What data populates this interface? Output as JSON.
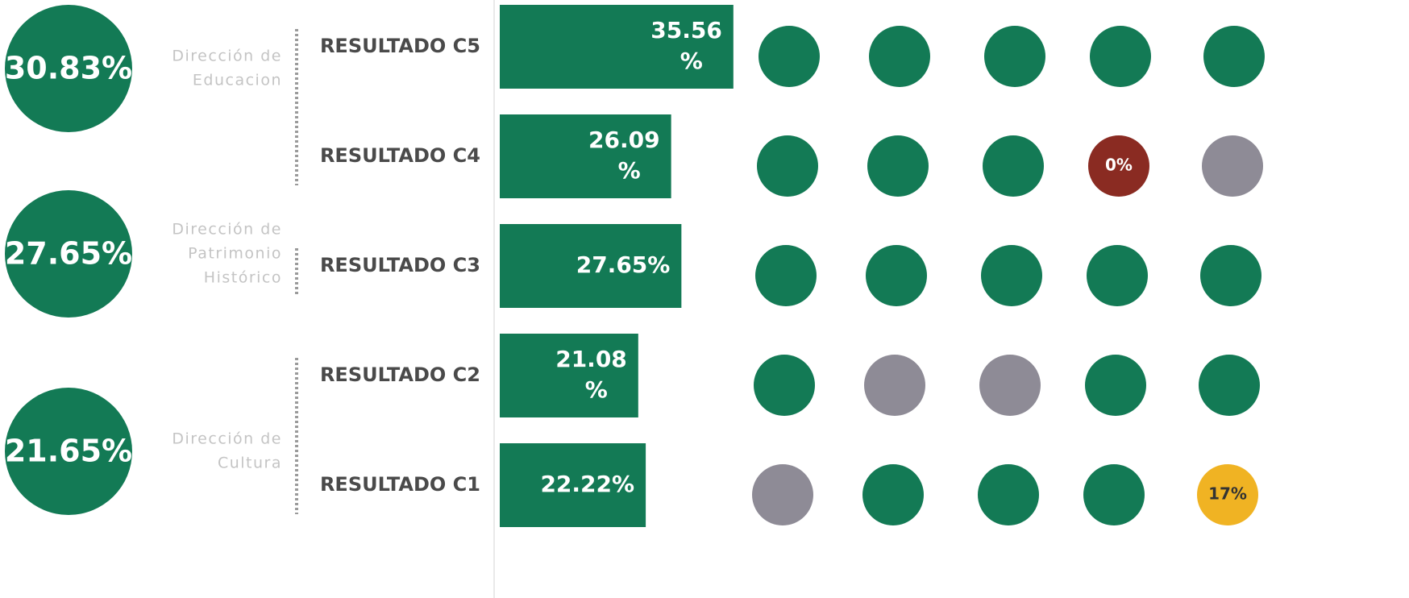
{
  "scale": {
    "xlim": [
      0,
      40
    ]
  },
  "groups": [
    {
      "total": "30.83%",
      "name": [
        "Dirección de",
        "Educacion"
      ],
      "color": "#137a55",
      "rows": [
        {
          "label": "RESULTADO C5",
          "value": 35.56,
          "value_label": [
            "35.56",
            "%"
          ],
          "dots": [
            {
              "color": "#137a55"
            },
            {
              "color": "#137a55"
            },
            {
              "color": "#137a55"
            },
            {
              "color": "#137a55"
            },
            {
              "color": "#137a55"
            }
          ]
        },
        {
          "label": "RESULTADO C4",
          "value": 26.09,
          "value_label": [
            "26.09",
            "%"
          ],
          "dots": [
            {
              "color": "#137a55"
            },
            {
              "color": "#137a55"
            },
            {
              "color": "#137a55"
            },
            {
              "color": "#8a2b22",
              "label": "0%"
            },
            {
              "color": "#8e8b96"
            }
          ]
        }
      ]
    },
    {
      "total": "27.65%",
      "name": [
        "Dirección de",
        "Patrimonio",
        "Histórico"
      ],
      "color": "#137a55",
      "rows": [
        {
          "label": "RESULTADO C3",
          "value": 27.65,
          "value_label": [
            "27.65%"
          ],
          "dots": [
            {
              "color": "#137a55"
            },
            {
              "color": "#137a55"
            },
            {
              "color": "#137a55"
            },
            {
              "color": "#137a55"
            },
            {
              "color": "#137a55"
            }
          ]
        }
      ]
    },
    {
      "total": "21.65%",
      "name": [
        "Dirección de",
        "Cultura"
      ],
      "color": "#137a55",
      "rows": [
        {
          "label": "RESULTADO C2",
          "value": 21.08,
          "value_label": [
            "21.08",
            "%"
          ],
          "dots": [
            {
              "color": "#137a55"
            },
            {
              "color": "#8e8b96"
            },
            {
              "color": "#8e8b96"
            },
            {
              "color": "#137a55"
            },
            {
              "color": "#137a55"
            }
          ]
        },
        {
          "label": "RESULTADO C1",
          "value": 22.22,
          "value_label": [
            "22.22%"
          ],
          "dots": [
            {
              "color": "#8e8b96"
            },
            {
              "color": "#137a55"
            },
            {
              "color": "#137a55"
            },
            {
              "color": "#137a55"
            },
            {
              "color": "#f0b323",
              "label": "17%"
            }
          ]
        }
      ]
    }
  ]
}
